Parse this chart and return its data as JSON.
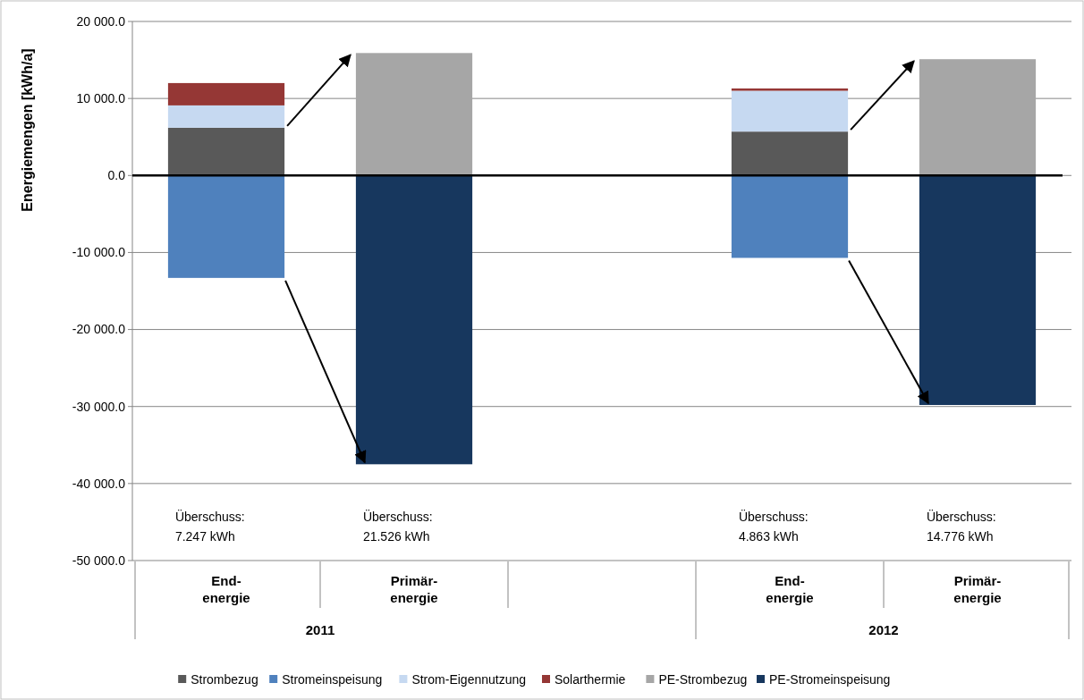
{
  "chart_data": {
    "type": "bar",
    "ylabel": "Energiemengen [kWh/a]",
    "stacked": true,
    "categories": [
      "End-\nenergie",
      "Primär-\nenergie",
      null,
      "End-\nenergie",
      "Primär-\nenergie"
    ],
    "series": [
      {
        "name": "Strombezug",
        "color": "#595959",
        "values": [
          6200,
          null,
          null,
          5700,
          null
        ]
      },
      {
        "name": "Stromeinspeisung",
        "color": "#4f81bd",
        "values": [
          -13300,
          null,
          null,
          -10700,
          null
        ]
      },
      {
        "name": "Strom-Eigennutzung",
        "color": "#c6d9f1",
        "values": [
          2900,
          null,
          null,
          5300,
          null
        ]
      },
      {
        "name": "Solarthermie",
        "color": "#953735",
        "values": [
          2900,
          null,
          null,
          300,
          null
        ]
      },
      {
        "name": "PE-Strombezug",
        "color": "#a6a6a6",
        "values": [
          null,
          15900,
          null,
          null,
          15100
        ]
      },
      {
        "name": "PE-Stromeinspeisung",
        "color": "#17375e",
        "values": [
          null,
          -37500,
          null,
          null,
          -29800
        ]
      }
    ],
    "ylim": [
      -50000,
      20000
    ],
    "yticks": [
      {
        "value": -50000,
        "label": "-50 000.0"
      },
      {
        "value": -40000,
        "label": "-40 000.0"
      },
      {
        "value": -30000,
        "label": "-30 000.0"
      },
      {
        "value": -20000,
        "label": "-20 000.0"
      },
      {
        "value": -10000,
        "label": "-10 000.0"
      },
      {
        "value": 0,
        "label": "0.0"
      },
      {
        "value": 10000,
        "label": "10 000.0"
      },
      {
        "value": 20000,
        "label": "20 000.0"
      }
    ],
    "grid": "y",
    "legend": "bottom",
    "ref_lines": [
      {
        "axis": "y",
        "value": 0,
        "color": "#000000"
      }
    ],
    "annotations": [
      "Überschuss:\n7.247 kWh",
      "Überschuss:\n21.526 kWh",
      "Überschuss:\n4.863 kWh",
      "Überschuss:\n14.776 kWh",
      "2011",
      "2012"
    ]
  }
}
